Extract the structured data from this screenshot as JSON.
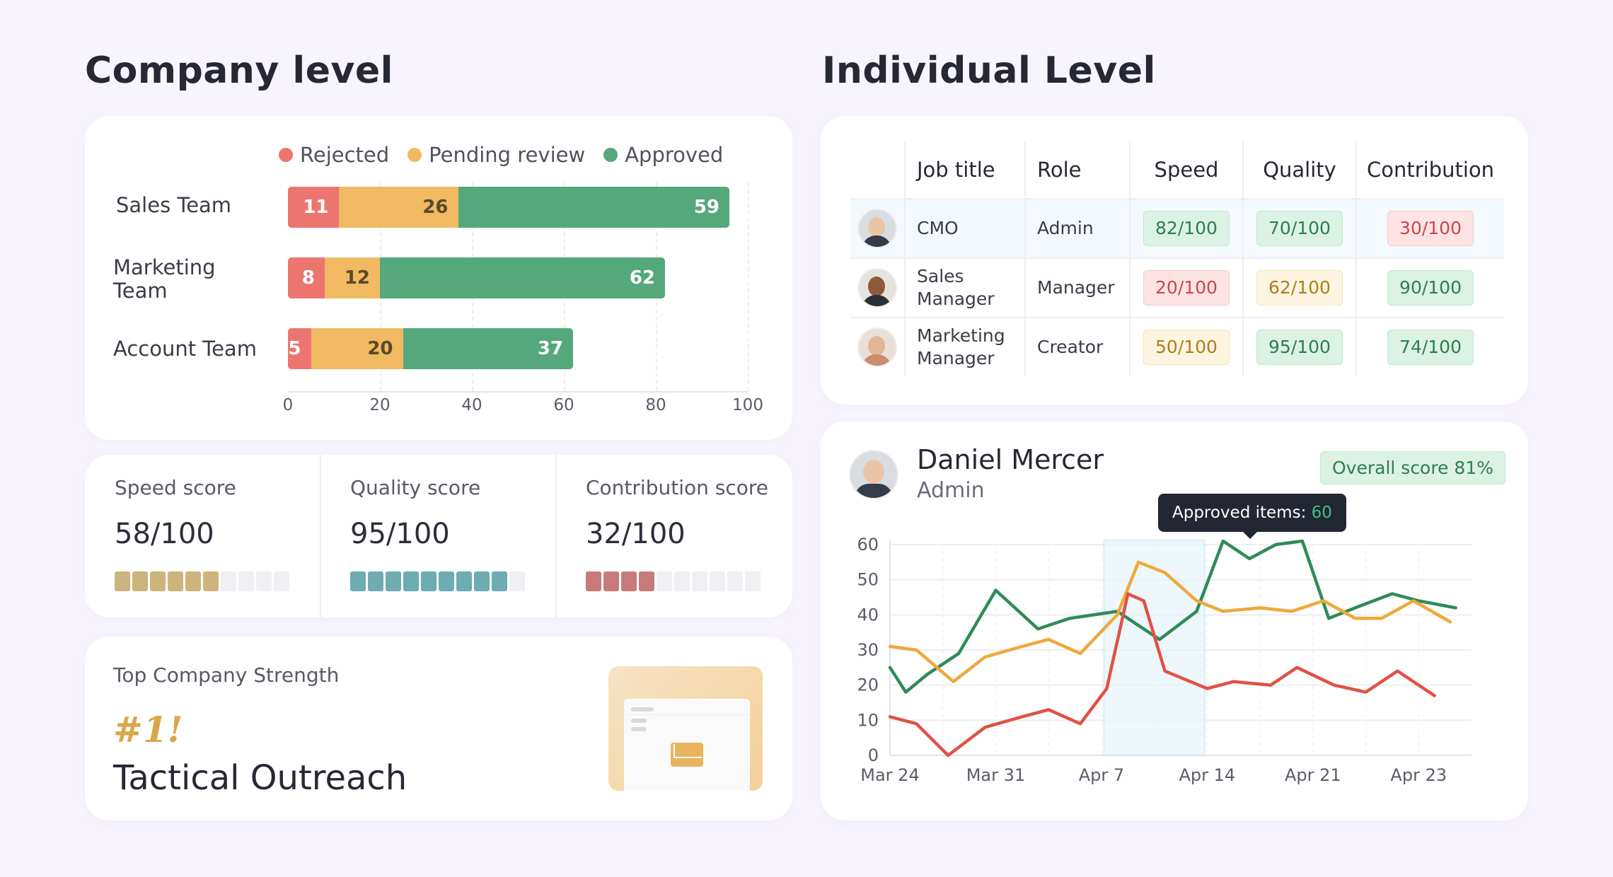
{
  "company": {
    "title": "Company level",
    "legend": [
      {
        "label": "Rejected",
        "color": "#ec7570"
      },
      {
        "label": "Pending review",
        "color": "#f1b962"
      },
      {
        "label": "Approved",
        "color": "#54a87c"
      }
    ],
    "teams": [
      {
        "label": "Sales Team",
        "rejected": 11,
        "pending": 26,
        "approved": 59
      },
      {
        "label": "Marketing Team",
        "rejected": 8,
        "pending": 12,
        "approved": 62
      },
      {
        "label": "Account Team",
        "rejected": 5,
        "pending": 20,
        "approved": 37
      }
    ],
    "x_ticks": [
      "0",
      "20",
      "40",
      "60",
      "80",
      "100"
    ],
    "scores": [
      {
        "title": "Speed score",
        "value": "58",
        "max": "/100",
        "filled": 6,
        "total": 10,
        "color": "#cdb47e"
      },
      {
        "title": "Quality score",
        "value": "95",
        "max": "/100",
        "filled": 9,
        "total": 10,
        "color": "#6eabb3"
      },
      {
        "title": "Contribution score",
        "value": "32",
        "max": "/100",
        "filled": 4,
        "total": 10,
        "color": "#c77a7a"
      }
    ],
    "strength": {
      "title": "Top Company Strength",
      "rank": "#1!",
      "name": "Tactical Outreach"
    }
  },
  "individual": {
    "title": "Individual Level",
    "columns": [
      "Job title",
      "Role",
      "Speed",
      "Quality",
      "Contribution"
    ],
    "rows": [
      {
        "job": "CMO",
        "role": "Admin",
        "speed": "82/100",
        "speed_tone": "g",
        "quality": "70/100",
        "quality_tone": "g",
        "contribution": "30/100",
        "contribution_tone": "r"
      },
      {
        "job": "Sales Manager",
        "role": "Manager",
        "speed": "20/100",
        "speed_tone": "r",
        "quality": "62/100",
        "quality_tone": "y",
        "contribution": "90/100",
        "contribution_tone": "g"
      },
      {
        "job": "Marketing Manager",
        "role": "Creator",
        "speed": "50/100",
        "speed_tone": "y",
        "quality": "95/100",
        "quality_tone": "g",
        "contribution": "74/100",
        "contribution_tone": "g"
      }
    ],
    "person": {
      "name": "Daniel Mercer",
      "role": "Admin",
      "overall": "Overall score 81%"
    },
    "tooltip": {
      "label": "Approved items: ",
      "value": "60"
    }
  },
  "chart_data": {
    "type": "line",
    "title": "",
    "xlabel": "",
    "ylabel": "",
    "ylim": [
      0,
      60
    ],
    "y_ticks": [
      0,
      10,
      20,
      30,
      40,
      50,
      60
    ],
    "x_tick_labels": [
      "Mar 24",
      "Mar 31",
      "Apr 7",
      "Apr 14",
      "Apr 21",
      "Apr 23"
    ],
    "highlight_range": [
      "Apr 7",
      "Apr 14"
    ],
    "series": [
      {
        "color": "#2e8b57",
        "points": [
          [
            0,
            25
          ],
          [
            0.3,
            18
          ],
          [
            0.7,
            23
          ],
          [
            1.3,
            29
          ],
          [
            2.0,
            47
          ],
          [
            2.8,
            36
          ],
          [
            3.4,
            39
          ],
          [
            4.3,
            41
          ],
          [
            5.1,
            33
          ],
          [
            5.8,
            41
          ],
          [
            6.3,
            61
          ],
          [
            6.8,
            56
          ],
          [
            7.3,
            60
          ],
          [
            7.8,
            61
          ],
          [
            8.3,
            39
          ],
          [
            8.8,
            42
          ],
          [
            9.5,
            46
          ],
          [
            10.0,
            44
          ],
          [
            10.7,
            42
          ]
        ]
      },
      {
        "color": "#f0a83a",
        "points": [
          [
            0,
            31
          ],
          [
            0.5,
            30
          ],
          [
            1.2,
            21
          ],
          [
            1.8,
            28
          ],
          [
            2.5,
            31
          ],
          [
            3.0,
            33
          ],
          [
            3.6,
            29
          ],
          [
            4.3,
            40
          ],
          [
            4.7,
            55
          ],
          [
            5.2,
            52
          ],
          [
            5.8,
            44
          ],
          [
            6.3,
            41
          ],
          [
            7.0,
            42
          ],
          [
            7.6,
            41
          ],
          [
            8.2,
            44
          ],
          [
            8.8,
            39
          ],
          [
            9.3,
            39
          ],
          [
            9.9,
            44
          ],
          [
            10.6,
            38
          ]
        ]
      },
      {
        "color": "#e15145",
        "points": [
          [
            0,
            11
          ],
          [
            0.5,
            9
          ],
          [
            1.1,
            0
          ],
          [
            1.8,
            8
          ],
          [
            2.5,
            11
          ],
          [
            3.0,
            13
          ],
          [
            3.6,
            9
          ],
          [
            4.1,
            19
          ],
          [
            4.5,
            46
          ],
          [
            4.8,
            44
          ],
          [
            5.2,
            24
          ],
          [
            6.0,
            19
          ],
          [
            6.5,
            21
          ],
          [
            7.2,
            20
          ],
          [
            7.7,
            25
          ],
          [
            8.4,
            20
          ],
          [
            9.0,
            18
          ],
          [
            9.6,
            24
          ],
          [
            10.3,
            17
          ]
        ]
      }
    ]
  }
}
